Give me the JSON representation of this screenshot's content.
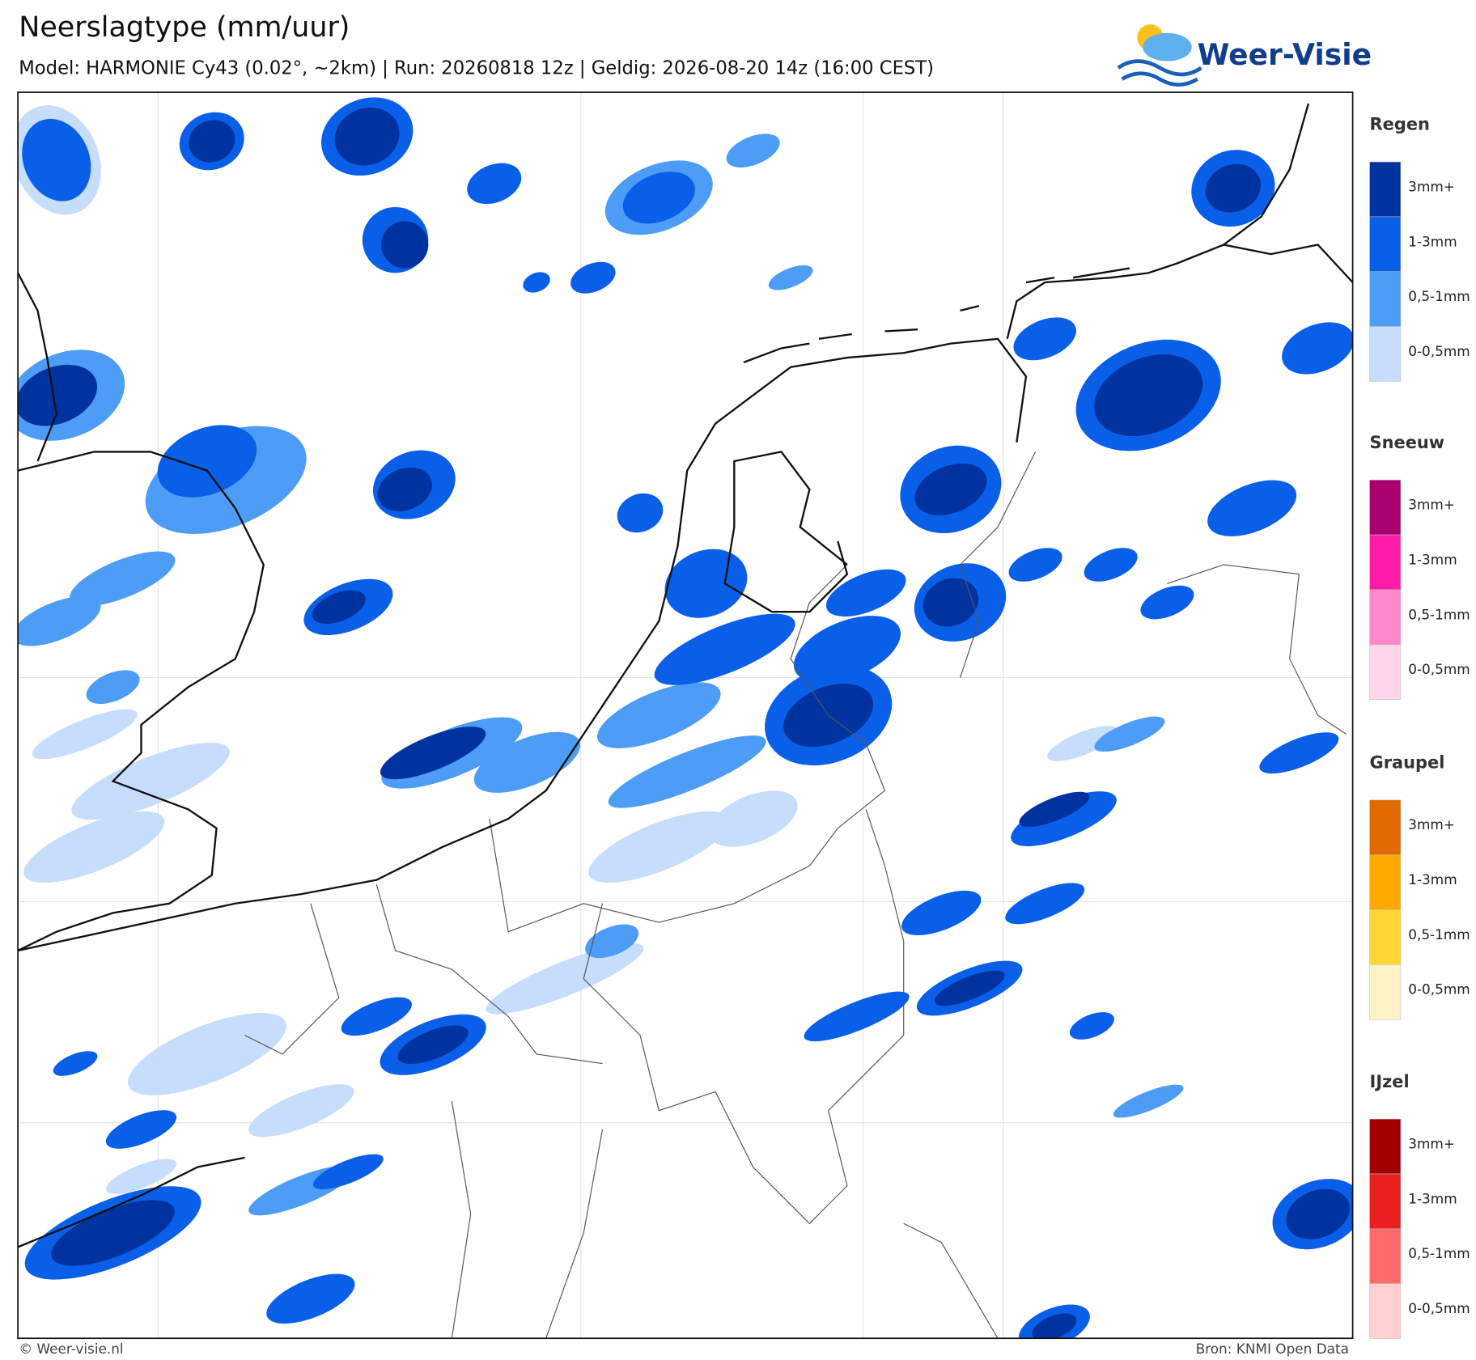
{
  "header": {
    "title": "Neerslagtype (mm/uur)",
    "subtitle": "Model: HARMONIE Cy43 (0.02°, ~2km)  |  Run: 20260818 12z  |  Geldig: 2026-08-20 14z (16:00 CEST)",
    "logo": "Weer-Visie"
  },
  "legend": [
    {
      "title": "Regen",
      "items": [
        {
          "label": "3mm+",
          "color": "#0033a0"
        },
        {
          "label": "1-3mm",
          "color": "#0a5fe8"
        },
        {
          "label": "0,5-1mm",
          "color": "#4d9cf5"
        },
        {
          "label": "0-0,5mm",
          "color": "#c6ddfb"
        }
      ]
    },
    {
      "title": "Sneeuw",
      "items": [
        {
          "label": "3mm+",
          "color": "#a8006e"
        },
        {
          "label": "1-3mm",
          "color": "#ff1aa8"
        },
        {
          "label": "0,5-1mm",
          "color": "#ff88cc"
        },
        {
          "label": "0-0,5mm",
          "color": "#ffd6ec"
        }
      ]
    },
    {
      "title": "Graupel",
      "items": [
        {
          "label": "3mm+",
          "color": "#e06a00"
        },
        {
          "label": "1-3mm",
          "color": "#ffa800"
        },
        {
          "label": "0,5-1mm",
          "color": "#ffd634"
        },
        {
          "label": "0-0,5mm",
          "color": "#fff3c6"
        }
      ]
    },
    {
      "title": "IJzel",
      "items": [
        {
          "label": "3mm+",
          "color": "#a00000"
        },
        {
          "label": "1-3mm",
          "color": "#e82020"
        },
        {
          "label": "0,5-1mm",
          "color": "#ff6a6a"
        },
        {
          "label": "0-0,5mm",
          "color": "#ffd0d0"
        }
      ]
    }
  ],
  "footer": {
    "copyright": "© Weer-visie.nl",
    "source": "Bron: KNMI Open Data"
  }
}
